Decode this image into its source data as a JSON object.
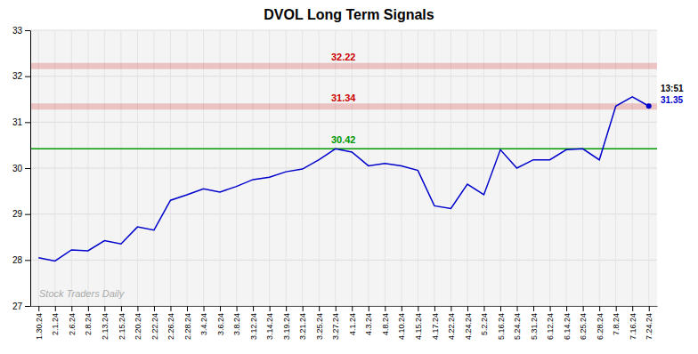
{
  "chart_data": {
    "type": "line",
    "title": "DVOL Long Term Signals",
    "categories": [
      "1.30.24",
      "2.1.24",
      "2.6.24",
      "2.8.24",
      "2.13.24",
      "2.15.24",
      "2.20.24",
      "2.22.24",
      "2.26.24",
      "2.28.24",
      "3.4.24",
      "3.6.24",
      "3.8.24",
      "3.12.24",
      "3.14.24",
      "3.19.24",
      "3.21.24",
      "3.25.24",
      "3.27.24",
      "4.1.24",
      "4.3.24",
      "4.8.24",
      "4.10.24",
      "4.15.24",
      "4.17.24",
      "4.22.24",
      "4.24.24",
      "5.2.24",
      "5.16.24",
      "5.24.24",
      "5.31.24",
      "6.12.24",
      "6.14.24",
      "6.25.24",
      "6.28.24",
      "7.8.24",
      "7.16.24",
      "7.24.24"
    ],
    "values": [
      28.05,
      27.98,
      28.22,
      28.2,
      28.42,
      28.35,
      28.72,
      28.65,
      29.3,
      29.42,
      29.55,
      29.48,
      29.6,
      29.75,
      29.8,
      29.92,
      29.98,
      30.18,
      30.42,
      30.35,
      30.05,
      30.1,
      30.05,
      29.95,
      29.18,
      29.12,
      29.65,
      29.42,
      30.4,
      30.0,
      30.18,
      30.18,
      30.4,
      30.42,
      30.18,
      31.35,
      31.55,
      31.35
    ],
    "color": "#0000cc",
    "ylim": [
      27,
      33
    ],
    "yticks": [
      27,
      28,
      29,
      30,
      31,
      32,
      33
    ],
    "grid": true,
    "reference_lines": [
      {
        "value": 30.42,
        "label": "30.42",
        "color": "#009900",
        "line_style": "solid"
      },
      {
        "value": 31.34,
        "label": "31.34",
        "color": "#cc0000",
        "line_style": "band"
      },
      {
        "value": 32.22,
        "label": "32.22",
        "color": "#cc0000",
        "line_style": "band"
      }
    ],
    "last_label": "13:51",
    "last_value_label": "31.35",
    "watermark": "Stock Traders Daily"
  }
}
